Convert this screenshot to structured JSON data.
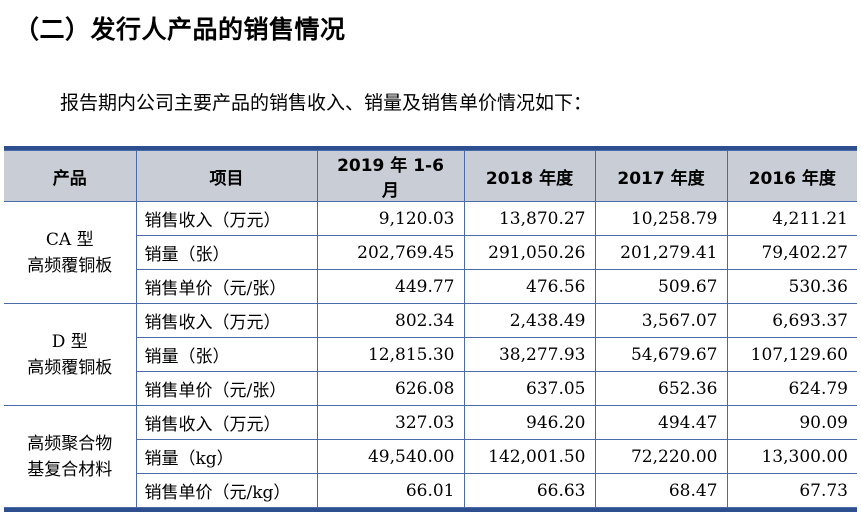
{
  "heading": "（二）发行人产品的销售情况",
  "intro": "报告期内公司主要产品的销售收入、销量及销售单价情况如下：",
  "table": {
    "headers": [
      "产品",
      "项目",
      "2019 年 1-6 月",
      "2018 年度",
      "2017 年度",
      "2016 年度"
    ],
    "groups": [
      {
        "product_line1": "CA 型",
        "product_line2": "高频覆铜板",
        "rows": [
          {
            "item": "销售收入（万元）",
            "values": [
              "9,120.03",
              "13,870.27",
              "10,258.79",
              "4,211.21"
            ]
          },
          {
            "item": "销量（张）",
            "values": [
              "202,769.45",
              "291,050.26",
              "201,279.41",
              "79,402.27"
            ]
          },
          {
            "item": "销售单价（元/张）",
            "values": [
              "449.77",
              "476.56",
              "509.67",
              "530.36"
            ]
          }
        ]
      },
      {
        "product_line1": "D 型",
        "product_line2": "高频覆铜板",
        "rows": [
          {
            "item": "销售收入（万元）",
            "values": [
              "802.34",
              "2,438.49",
              "3,567.07",
              "6,693.37"
            ]
          },
          {
            "item": "销量（张）",
            "values": [
              "12,815.30",
              "38,277.93",
              "54,679.67",
              "107,129.60"
            ]
          },
          {
            "item": "销售单价（元/张）",
            "values": [
              "626.08",
              "637.05",
              "652.36",
              "624.79"
            ]
          }
        ]
      },
      {
        "product_line1": "高频聚合物",
        "product_line2": "基复合材料",
        "rows": [
          {
            "item": "销售收入（万元）",
            "values": [
              "327.03",
              "946.20",
              "494.47",
              "90.09"
            ]
          },
          {
            "item": "销量（kg）",
            "values": [
              "49,540.00",
              "142,001.50",
              "72,220.00",
              "13,300.00"
            ]
          },
          {
            "item": "销售单价（元/kg）",
            "values": [
              "66.01",
              "66.63",
              "68.47",
              "67.73"
            ]
          }
        ]
      }
    ]
  }
}
